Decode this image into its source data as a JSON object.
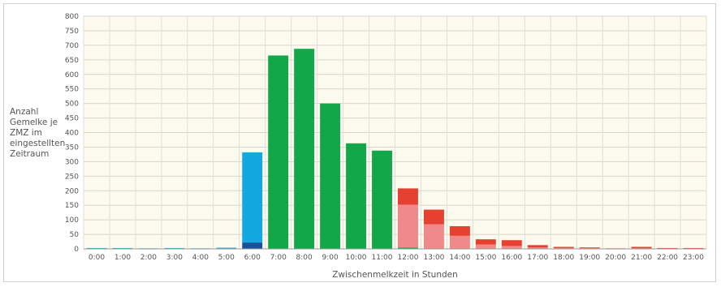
{
  "chart_data": {
    "type": "bar",
    "stacked": true,
    "title": "",
    "ylabel": "Anzahl\nGemelke je\nZMZ im\neingestellten\nZeitraum",
    "xlabel": "Zwischenmelkzeit in Stunden",
    "ylim": [
      0,
      800
    ],
    "yticks": [
      0,
      50,
      100,
      150,
      200,
      250,
      300,
      350,
      400,
      450,
      500,
      550,
      600,
      650,
      700,
      750,
      800
    ],
    "grid": true,
    "legend": "none",
    "categories": [
      "0:00",
      "1:00",
      "2:00",
      "3:00",
      "4:00",
      "5:00",
      "6:00",
      "7:00",
      "8:00",
      "9:00",
      "10:00",
      "11:00",
      "12:00",
      "13:00",
      "14:00",
      "15:00",
      "16:00",
      "17:00",
      "18:00",
      "19:00",
      "20:00",
      "21:00",
      "22:00",
      "23:00"
    ],
    "series": [
      {
        "color": "#1a4f9a",
        "values": [
          0,
          0,
          0,
          0,
          0,
          0,
          22,
          0,
          0,
          0,
          0,
          0,
          0,
          0,
          0,
          0,
          0,
          0,
          0,
          0,
          0,
          0,
          0,
          0
        ]
      },
      {
        "color": "#14a8e0",
        "values": [
          3,
          3,
          2,
          3,
          2,
          4,
          310,
          0,
          0,
          0,
          0,
          0,
          0,
          0,
          0,
          0,
          0,
          0,
          0,
          0,
          0,
          0,
          0,
          0
        ]
      },
      {
        "color": "#12a84a",
        "values": [
          0,
          0,
          0,
          0,
          0,
          0,
          0,
          665,
          688,
          500,
          363,
          338,
          5,
          0,
          0,
          0,
          0,
          0,
          0,
          0,
          0,
          0,
          0,
          0
        ]
      },
      {
        "color": "#f08a8a",
        "values": [
          0,
          0,
          0,
          0,
          0,
          0,
          0,
          0,
          0,
          0,
          0,
          0,
          147,
          85,
          45,
          15,
          10,
          5,
          3,
          2,
          1,
          2,
          1,
          1
        ]
      },
      {
        "color": "#e64030",
        "values": [
          0,
          0,
          0,
          0,
          0,
          0,
          0,
          0,
          0,
          0,
          0,
          0,
          56,
          50,
          33,
          18,
          20,
          8,
          4,
          3,
          1,
          5,
          2,
          2
        ]
      }
    ]
  }
}
